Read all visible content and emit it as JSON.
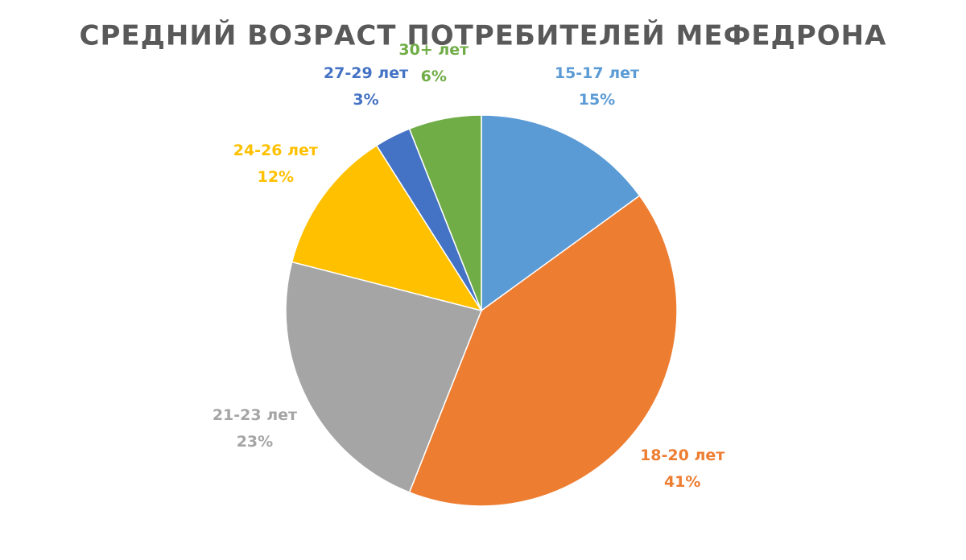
{
  "chart_data": {
    "type": "pie",
    "title": "СРЕДНИЙ ВОЗРАСТ ПОТРЕБИТЕЛЕЙ МЕФЕДРОНА",
    "categories": [
      "15-17 лет",
      "18-20 лет",
      "21-23 лет",
      "24-26 лет",
      "27-29 лет",
      "30+ лет"
    ],
    "values": [
      15,
      41,
      23,
      12,
      3,
      6
    ],
    "value_labels": [
      "15%",
      "41%",
      "23%",
      "12%",
      "3%",
      "6%"
    ],
    "colors": [
      "#5b9bd5",
      "#ed7d31",
      "#a5a5a5",
      "#ffc000",
      "#4472c4",
      "#70ad47"
    ]
  }
}
